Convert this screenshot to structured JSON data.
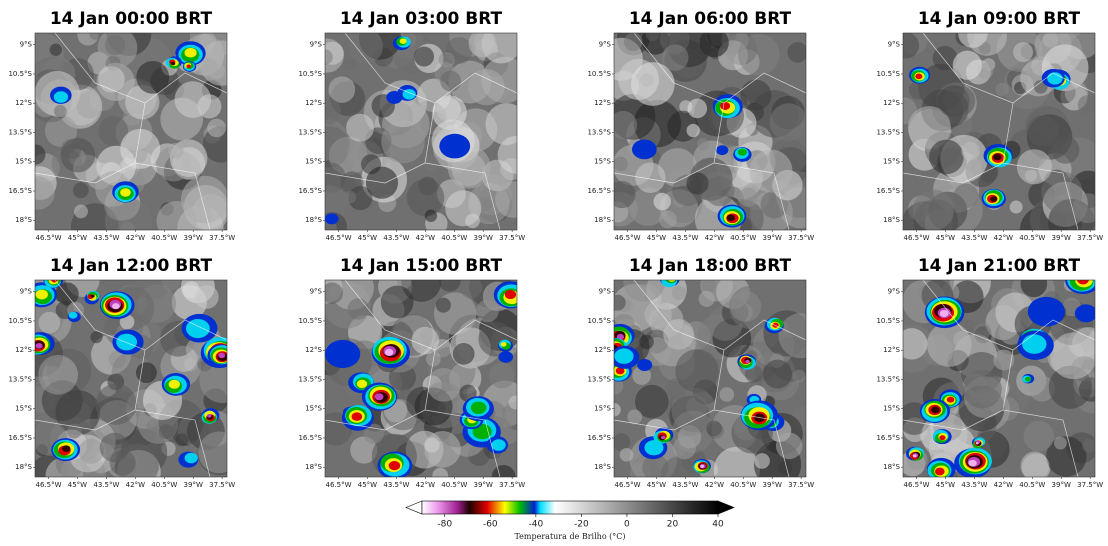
{
  "panels": [
    {
      "title": "14 Jan 00:00 BRT"
    },
    {
      "title": "14 Jan 03:00 BRT"
    },
    {
      "title": "14 Jan 06:00 BRT"
    },
    {
      "title": "14 Jan 09:00 BRT"
    },
    {
      "title": "14 Jan 12:00 BRT"
    },
    {
      "title": "14 Jan 15:00 BRT"
    },
    {
      "title": "14 Jan 18:00 BRT"
    },
    {
      "title": "14 Jan 21:00 BRT"
    }
  ],
  "map": {
    "latlim": [
      -18.5,
      -8.4
    ],
    "lonlim": [
      -47.2,
      -37.25
    ],
    "lat_ticks": [
      {
        "value": -9,
        "label": "9°S"
      },
      {
        "value": -10.5,
        "label": "10.5°S"
      },
      {
        "value": -12,
        "label": "12°S"
      },
      {
        "value": -13.5,
        "label": "13.5°S"
      },
      {
        "value": -15,
        "label": "15°S"
      },
      {
        "value": -16.5,
        "label": "16.5°S"
      },
      {
        "value": -18,
        "label": "18°S"
      }
    ],
    "lon_ticks": [
      {
        "value": -46.5,
        "label": "46.5°W"
      },
      {
        "value": -45,
        "label": "45°W"
      },
      {
        "value": -43.5,
        "label": "43.5°W"
      },
      {
        "value": -42,
        "label": "42°W"
      },
      {
        "value": -40.5,
        "label": "40.5°W"
      },
      {
        "value": -39,
        "label": "39°W"
      },
      {
        "value": -37.5,
        "label": "37.5°W"
      }
    ]
  },
  "colorbar": {
    "label": "Temperatura de Brilho (°C)",
    "lim": [
      -90,
      40
    ],
    "ticks": [
      -80,
      -60,
      -40,
      -20,
      0,
      20,
      40
    ]
  }
}
